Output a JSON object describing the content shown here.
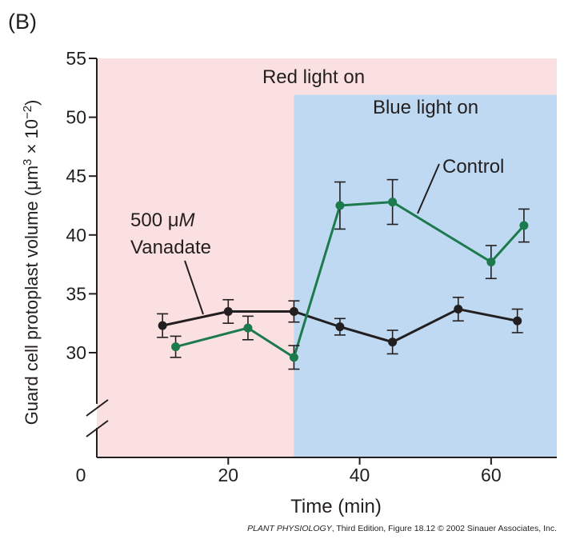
{
  "panel_label": "(B)",
  "credit": {
    "book": "PLANT PHYSIOLOGY",
    "rest": ", Third Edition, Figure 18.12  © 2002 Sinauer Associates, Inc."
  },
  "colors": {
    "red_region": "#fbe0e1",
    "blue_region": "#bed9f1",
    "control": "#1c7a4c",
    "vanadate": "#231f20",
    "axis": "#231f20"
  },
  "chart_data": {
    "type": "line",
    "title": "",
    "xlabel": "Time (min)",
    "ylabel_parts": [
      "Guard cell protoplast volume (μm",
      "3",
      " × 10",
      "−2",
      ")"
    ],
    "xlim": [
      0,
      70
    ],
    "ylim": [
      25,
      55
    ],
    "axis_break": "y",
    "grid": false,
    "x_ticks": [
      {
        "value": 0,
        "label": "0"
      },
      {
        "value": 20,
        "label": "20"
      },
      {
        "value": 40,
        "label": "40"
      },
      {
        "value": 60,
        "label": "60"
      }
    ],
    "y_ticks": [
      {
        "value": 30,
        "label": "30"
      },
      {
        "value": 35,
        "label": "35"
      },
      {
        "value": 40,
        "label": "40"
      },
      {
        "value": 45,
        "label": "45"
      },
      {
        "value": 50,
        "label": "50"
      },
      {
        "value": 55,
        "label": "55"
      }
    ],
    "regions": [
      {
        "name": "red",
        "label": "Red light on",
        "x_start": 0,
        "x_end": 70,
        "y_top": 55,
        "color": "#fbe0e1"
      },
      {
        "name": "blue",
        "label": "Blue light on",
        "x_start": 30,
        "x_end": 70,
        "y_top": 51.9,
        "color": "#bed9f1"
      }
    ],
    "series": [
      {
        "name": "500 μM Vanadate",
        "label_lines": [
          "500 μ",
          "M",
          "Vanadate"
        ],
        "color": "#231f20",
        "x": [
          10,
          20,
          30,
          37,
          45,
          55,
          64
        ],
        "y": [
          32.3,
          33.5,
          33.5,
          32.2,
          30.9,
          33.7,
          32.7
        ],
        "err": [
          1.0,
          1.0,
          0.9,
          0.7,
          1.0,
          1.0,
          1.0
        ]
      },
      {
        "name": "Control",
        "label_lines": [
          "Control"
        ],
        "color": "#1c7a4c",
        "x": [
          12,
          23,
          30,
          37,
          45,
          60,
          65
        ],
        "y": [
          30.5,
          32.1,
          29.6,
          42.5,
          42.8,
          37.7,
          40.8
        ],
        "err": [
          0.9,
          1.0,
          1.0,
          2.0,
          1.9,
          1.4,
          1.4
        ]
      }
    ]
  }
}
